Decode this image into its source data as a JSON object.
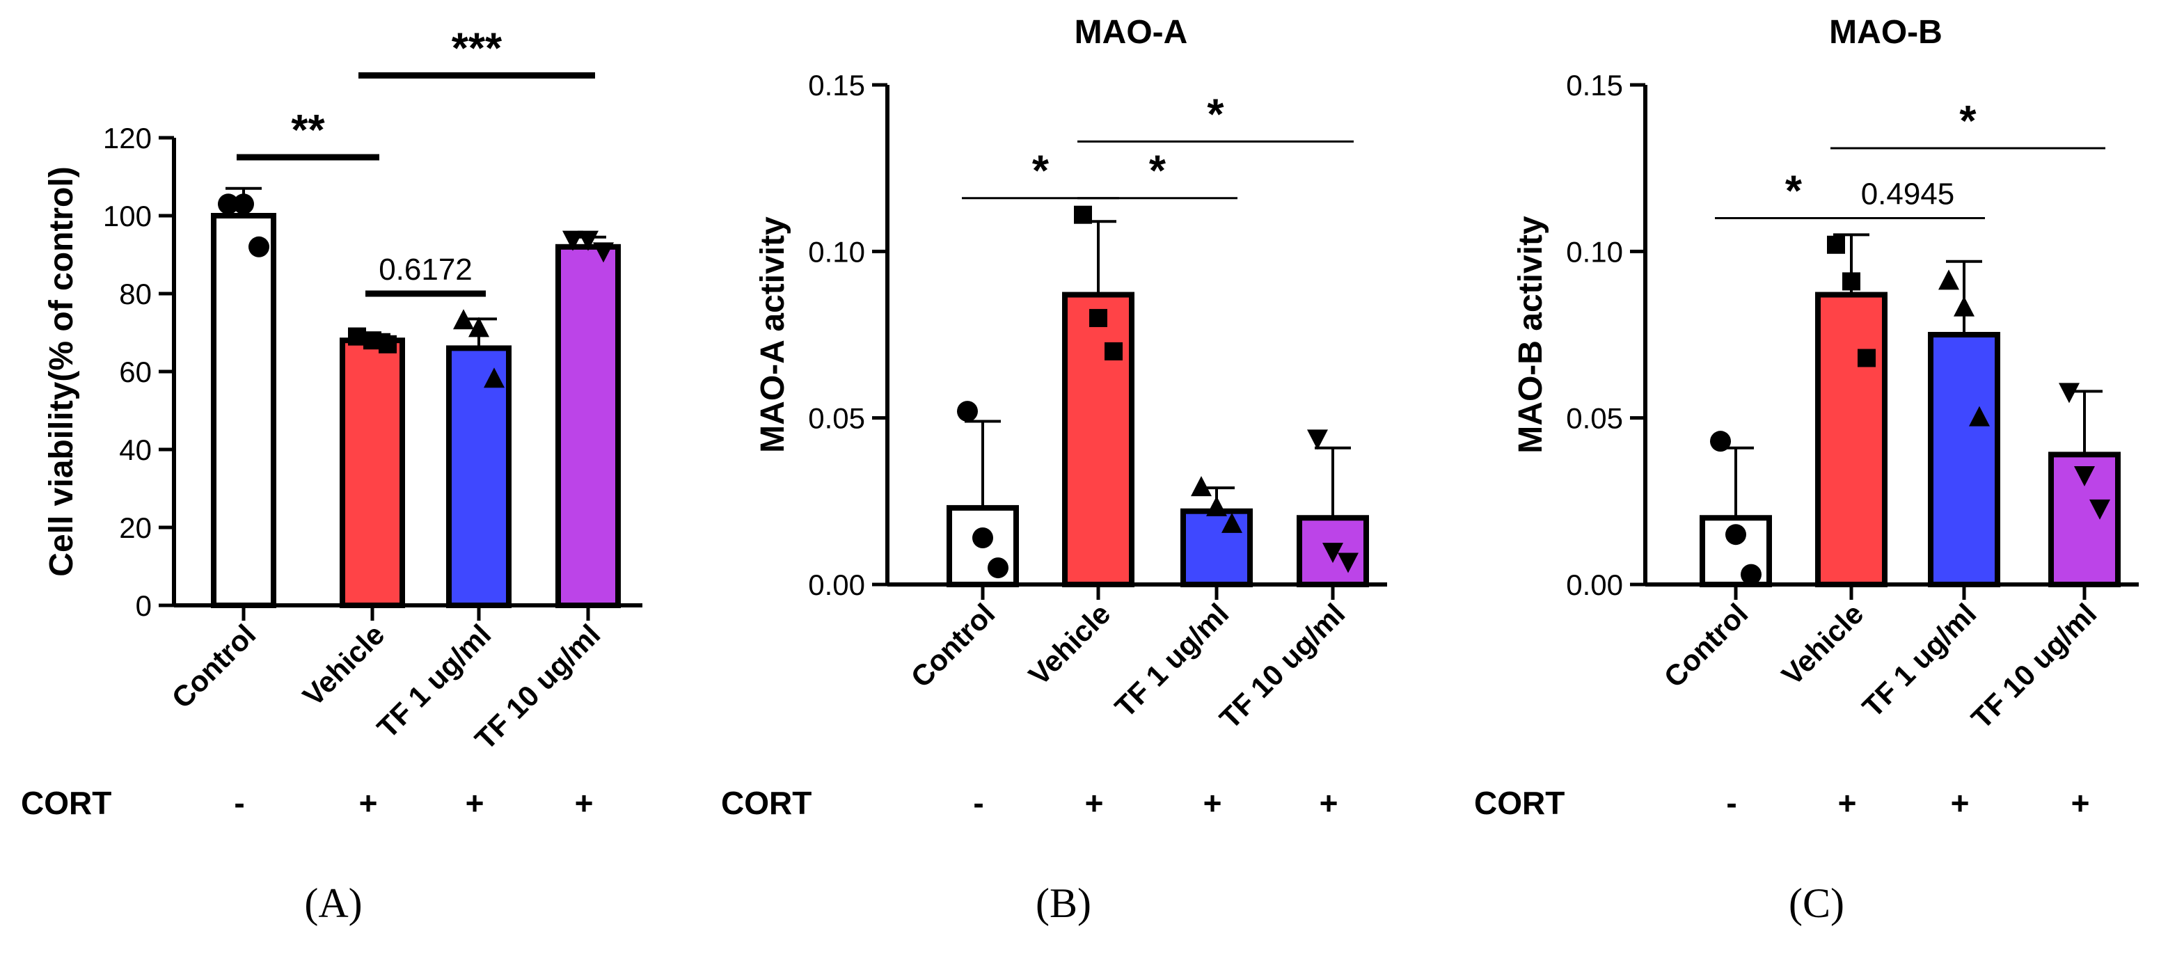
{
  "chart_data": [
    {
      "type": "bar",
      "panel_label": "(A)",
      "title": "",
      "ylabel": "Cell viability(% of control)",
      "ylim": [
        0,
        120
      ],
      "yticks": [
        "0",
        "20",
        "40",
        "60",
        "80",
        "100",
        "120"
      ],
      "ytick_values": [
        0,
        20,
        40,
        60,
        80,
        100,
        120
      ],
      "categories": [
        "Control",
        "Vehicle",
        "TF 1 ug/ml",
        "TF 10 ug/ml"
      ],
      "values": [
        100,
        68,
        66,
        92
      ],
      "errors": [
        7,
        1.5,
        7.5,
        2.5
      ],
      "points": [
        [
          103,
          103,
          92
        ],
        [
          69,
          68,
          67
        ],
        [
          73,
          71,
          58
        ],
        [
          94,
          94,
          91
        ]
      ],
      "markers": [
        "circle",
        "square",
        "triangle-up",
        "triangle-down"
      ],
      "colors": [
        "#ffffff",
        "#ff4347",
        "#3f48ff",
        "#bc44e8"
      ],
      "cort_label": "CORT",
      "cort": [
        "-",
        "+",
        "+",
        "+"
      ],
      "comparisons": [
        {
          "from": 0,
          "to": 1,
          "label": "**",
          "y": 115
        },
        {
          "from": 1,
          "to": 2,
          "label": "0.6172",
          "y": 80
        },
        {
          "from": 1,
          "to": 3,
          "label": "***",
          "y": 136
        }
      ]
    },
    {
      "type": "bar",
      "panel_label": "(B)",
      "title": "MAO-A",
      "ylabel": "MAO-A activity",
      "ylim": [
        0,
        0.15
      ],
      "yticks": [
        "0.00",
        "0.05",
        "0.10",
        "0.15"
      ],
      "ytick_values": [
        0,
        0.05,
        0.1,
        0.15
      ],
      "categories": [
        "Control",
        "Vehicle",
        "TF 1 ug/ml",
        "TF 10 ug/ml"
      ],
      "values": [
        0.023,
        0.087,
        0.022,
        0.02
      ],
      "errors": [
        0.026,
        0.022,
        0.007,
        0.021
      ],
      "points": [
        [
          0.052,
          0.014,
          0.005
        ],
        [
          0.111,
          0.08,
          0.07
        ],
        [
          0.029,
          0.023,
          0.018
        ],
        [
          0.044,
          0.01,
          0.007
        ]
      ],
      "markers": [
        "circle",
        "square",
        "triangle-up",
        "triangle-down"
      ],
      "colors": [
        "#ffffff",
        "#ff4347",
        "#3f48ff",
        "#bc44e8"
      ],
      "cort_label": "CORT",
      "cort": [
        "-",
        "+",
        "+",
        "+"
      ],
      "comparisons": [
        {
          "from": 0,
          "to": 1,
          "label": "*",
          "y": 0.116
        },
        {
          "from": 1,
          "to": 2,
          "label": "*",
          "y": 0.116
        },
        {
          "from": 1,
          "to": 3,
          "label": "*",
          "y": 0.133
        }
      ]
    },
    {
      "type": "bar",
      "panel_label": "(C)",
      "title": "MAO-B",
      "ylabel": "MAO-B activity",
      "ylim": [
        0,
        0.15
      ],
      "yticks": [
        "0.00",
        "0.05",
        "0.10",
        "0.15"
      ],
      "ytick_values": [
        0,
        0.05,
        0.1,
        0.15
      ],
      "categories": [
        "Control",
        "Vehicle",
        "TF 1 ug/ml",
        "TF 10 ug/ml"
      ],
      "values": [
        0.02,
        0.087,
        0.075,
        0.039
      ],
      "errors": [
        0.021,
        0.018,
        0.022,
        0.019
      ],
      "points": [
        [
          0.043,
          0.015,
          0.003
        ],
        [
          0.102,
          0.091,
          0.068
        ],
        [
          0.091,
          0.083,
          0.05
        ],
        [
          0.058,
          0.033,
          0.023
        ]
      ],
      "markers": [
        "circle",
        "square",
        "triangle-up",
        "triangle-down"
      ],
      "colors": [
        "#ffffff",
        "#ff4347",
        "#3f48ff",
        "#bc44e8"
      ],
      "cort_label": "CORT",
      "cort": [
        "-",
        "+",
        "+",
        "+"
      ],
      "comparisons": [
        {
          "from": 0,
          "to": 1,
          "label": "*",
          "y": 0.11
        },
        {
          "from": 1,
          "to": 2,
          "label": "0.4945",
          "y": 0.11
        },
        {
          "from": 1,
          "to": 3,
          "label": "*",
          "y": 0.131
        }
      ]
    }
  ]
}
